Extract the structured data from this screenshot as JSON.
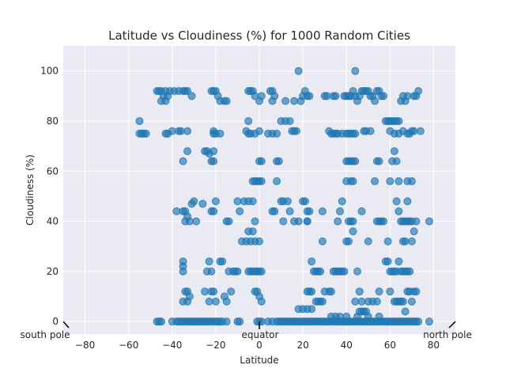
{
  "chart_data": {
    "type": "scatter",
    "title": "Latitude vs Cloudiness (%) for 1000 Random Cities",
    "xlabel": "Latitude",
    "ylabel": "Cloudiness (%)",
    "xlim": [
      -90,
      90
    ],
    "ylim": [
      -5,
      110
    ],
    "xticks": [
      -80,
      -60,
      -40,
      -20,
      0,
      20,
      40,
      60,
      80
    ],
    "yticks": [
      0,
      20,
      40,
      60,
      80,
      100
    ],
    "xtick_labels": [
      "−80",
      "−60",
      "−40",
      "−20",
      "0",
      "20",
      "40",
      "60",
      "80"
    ],
    "ytick_labels": [
      "0",
      "20",
      "40",
      "60",
      "80",
      "100"
    ],
    "grid": true,
    "marker_color": "#1f77b4",
    "annotations": [
      {
        "text": "south pole",
        "x": -90,
        "y": 0
      },
      {
        "text": "equator",
        "x": 0,
        "y": 0
      },
      {
        "text": "north pole",
        "x": 90,
        "y": 0
      }
    ],
    "points": [
      [
        -55,
        80
      ],
      [
        -55,
        75
      ],
      [
        -54,
        75
      ],
      [
        -53,
        75
      ],
      [
        -52,
        75
      ],
      [
        -47,
        92
      ],
      [
        -46,
        92
      ],
      [
        -45,
        92
      ],
      [
        -44,
        90
      ],
      [
        -43,
        92
      ],
      [
        -42,
        90
      ],
      [
        -45,
        88
      ],
      [
        -43,
        88
      ],
      [
        -41,
        92
      ],
      [
        -39,
        92
      ],
      [
        -37,
        92
      ],
      [
        -35,
        92
      ],
      [
        -34,
        92
      ],
      [
        -33,
        92
      ],
      [
        -31,
        90
      ],
      [
        -43,
        75
      ],
      [
        -42,
        75
      ],
      [
        -40,
        76
      ],
      [
        -37,
        76
      ],
      [
        -36,
        76
      ],
      [
        -33,
        76
      ],
      [
        -38,
        44
      ],
      [
        -35,
        44
      ],
      [
        -34,
        44
      ],
      [
        -33,
        42
      ],
      [
        -34,
        40
      ],
      [
        -32,
        40
      ],
      [
        -31,
        47
      ],
      [
        -30,
        48
      ],
      [
        -29,
        40
      ],
      [
        -26,
        47
      ],
      [
        -35,
        24
      ],
      [
        -35,
        22
      ],
      [
        -35,
        20
      ],
      [
        -34,
        12
      ],
      [
        -33,
        12
      ],
      [
        -32,
        10
      ],
      [
        -35,
        8
      ],
      [
        -33,
        8
      ],
      [
        -35,
        64
      ],
      [
        -33,
        68
      ],
      [
        -25,
        68
      ],
      [
        -24,
        68
      ],
      [
        -23,
        67
      ],
      [
        -22,
        64
      ],
      [
        -21,
        64
      ],
      [
        -21,
        68
      ],
      [
        -22,
        92
      ],
      [
        -21,
        92
      ],
      [
        -20,
        92
      ],
      [
        -19,
        90
      ],
      [
        -18,
        88
      ],
      [
        -16,
        88
      ],
      [
        -15,
        88
      ],
      [
        -21,
        76
      ],
      [
        -21,
        75
      ],
      [
        -20,
        75
      ],
      [
        -18,
        75
      ],
      [
        -22,
        44
      ],
      [
        -21,
        44
      ],
      [
        -20,
        48
      ],
      [
        -23,
        24
      ],
      [
        -22,
        20
      ],
      [
        -24,
        20
      ],
      [
        -18,
        24
      ],
      [
        -17,
        24
      ],
      [
        -14,
        20
      ],
      [
        -12,
        20
      ],
      [
        -11,
        20
      ],
      [
        -10,
        20
      ],
      [
        -22,
        12
      ],
      [
        -21,
        12
      ],
      [
        -25,
        12
      ],
      [
        -23,
        8
      ],
      [
        -20,
        8
      ],
      [
        -16,
        10
      ],
      [
        -15,
        8
      ],
      [
        -13,
        12
      ],
      [
        -14,
        40
      ],
      [
        -15,
        40
      ],
      [
        -10,
        48
      ],
      [
        -9,
        44
      ],
      [
        -7,
        48
      ],
      [
        -5,
        48
      ],
      [
        -3,
        48
      ],
      [
        -8,
        32
      ],
      [
        -6,
        32
      ],
      [
        -4,
        32
      ],
      [
        -2,
        32
      ],
      [
        0,
        32
      ],
      [
        -5,
        36
      ],
      [
        -3,
        36
      ],
      [
        -2,
        40
      ],
      [
        -5,
        20
      ],
      [
        -4,
        20
      ],
      [
        -3,
        20
      ],
      [
        -2,
        20
      ],
      [
        -1,
        20
      ],
      [
        0,
        20
      ],
      [
        1,
        20
      ],
      [
        -2,
        12
      ],
      [
        -1,
        12
      ],
      [
        0,
        10
      ],
      [
        1,
        8
      ],
      [
        -3,
        56
      ],
      [
        -2,
        56
      ],
      [
        -1,
        56
      ],
      [
        0,
        56
      ],
      [
        1,
        56
      ],
      [
        0,
        64
      ],
      [
        1,
        64
      ],
      [
        -3,
        92
      ],
      [
        -4,
        92
      ],
      [
        -5,
        92
      ],
      [
        -2,
        90
      ],
      [
        0,
        88
      ],
      [
        1,
        90
      ],
      [
        -5,
        80
      ],
      [
        -6,
        76
      ],
      [
        -5,
        75
      ],
      [
        -4,
        75
      ],
      [
        -2,
        75
      ],
      [
        0,
        76
      ],
      [
        4,
        75
      ],
      [
        6,
        75
      ],
      [
        8,
        75
      ],
      [
        10,
        80
      ],
      [
        12,
        80
      ],
      [
        14,
        80
      ],
      [
        5,
        92
      ],
      [
        6,
        92
      ],
      [
        7,
        90
      ],
      [
        6,
        88
      ],
      [
        12,
        88
      ],
      [
        16,
        88
      ],
      [
        18,
        100
      ],
      [
        20,
        90
      ],
      [
        21,
        92
      ],
      [
        22,
        90
      ],
      [
        23,
        90
      ],
      [
        19,
        88
      ],
      [
        15,
        76
      ],
      [
        16,
        76
      ],
      [
        17,
        76
      ],
      [
        8,
        64
      ],
      [
        9,
        64
      ],
      [
        10,
        48
      ],
      [
        11,
        48
      ],
      [
        13,
        48
      ],
      [
        14,
        44
      ],
      [
        7,
        44
      ],
      [
        6,
        44
      ],
      [
        8,
        56
      ],
      [
        11,
        40
      ],
      [
        16,
        40
      ],
      [
        18,
        40
      ],
      [
        20,
        48
      ],
      [
        21,
        48
      ],
      [
        22,
        44
      ],
      [
        23,
        44
      ],
      [
        22,
        40
      ],
      [
        22,
        40
      ],
      [
        24,
        24
      ],
      [
        25,
        20
      ],
      [
        26,
        20
      ],
      [
        27,
        20
      ],
      [
        28,
        20
      ],
      [
        29,
        32
      ],
      [
        29,
        44
      ],
      [
        22,
        12
      ],
      [
        23,
        12
      ],
      [
        24,
        12
      ],
      [
        26,
        8
      ],
      [
        27,
        8
      ],
      [
        28,
        8
      ],
      [
        29,
        8
      ],
      [
        30,
        12
      ],
      [
        32,
        12
      ],
      [
        33,
        12
      ],
      [
        34,
        20
      ],
      [
        35,
        20
      ],
      [
        36,
        20
      ],
      [
        37,
        20
      ],
      [
        38,
        20
      ],
      [
        39,
        20
      ],
      [
        40,
        32
      ],
      [
        41,
        32
      ],
      [
        43,
        36
      ],
      [
        42,
        40
      ],
      [
        43,
        40
      ],
      [
        41,
        40
      ],
      [
        37,
        44
      ],
      [
        38,
        48
      ],
      [
        36,
        40
      ],
      [
        40,
        56
      ],
      [
        42,
        56
      ],
      [
        43,
        56
      ],
      [
        40,
        64
      ],
      [
        41,
        64
      ],
      [
        42,
        64
      ],
      [
        43,
        64
      ],
      [
        44,
        64
      ],
      [
        40,
        75
      ],
      [
        41,
        75
      ],
      [
        42,
        75
      ],
      [
        43,
        75
      ],
      [
        44,
        75
      ],
      [
        32,
        76
      ],
      [
        33,
        75
      ],
      [
        34,
        75
      ],
      [
        35,
        75
      ],
      [
        36,
        75
      ],
      [
        38,
        75
      ],
      [
        30,
        90
      ],
      [
        31,
        90
      ],
      [
        34,
        90
      ],
      [
        35,
        90
      ],
      [
        39,
        90
      ],
      [
        40,
        90
      ],
      [
        41,
        90
      ],
      [
        42,
        90
      ],
      [
        43,
        92
      ],
      [
        44,
        90
      ],
      [
        45,
        88
      ],
      [
        46,
        90
      ],
      [
        47,
        92
      ],
      [
        48,
        92
      ],
      [
        49,
        92
      ],
      [
        50,
        92
      ],
      [
        51,
        90
      ],
      [
        52,
        90
      ],
      [
        53,
        88
      ],
      [
        54,
        92
      ],
      [
        55,
        92
      ],
      [
        56,
        90
      ],
      [
        57,
        90
      ],
      [
        58,
        80
      ],
      [
        59,
        80
      ],
      [
        60,
        80
      ],
      [
        61,
        80
      ],
      [
        62,
        80
      ],
      [
        63,
        80
      ],
      [
        64,
        80
      ],
      [
        65,
        88
      ],
      [
        66,
        90
      ],
      [
        67,
        88
      ],
      [
        68,
        90
      ],
      [
        69,
        75
      ],
      [
        70,
        76
      ],
      [
        71,
        90
      ],
      [
        72,
        90
      ],
      [
        73,
        92
      ],
      [
        74,
        76
      ],
      [
        60,
        76
      ],
      [
        62,
        75
      ],
      [
        64,
        75
      ],
      [
        66,
        76
      ],
      [
        68,
        75
      ],
      [
        71,
        76
      ],
      [
        62,
        68
      ],
      [
        63,
        64
      ],
      [
        61,
        64
      ],
      [
        60,
        56
      ],
      [
        64,
        56
      ],
      [
        68,
        56
      ],
      [
        70,
        56
      ],
      [
        53,
        56
      ],
      [
        54,
        64
      ],
      [
        55,
        64
      ],
      [
        48,
        76
      ],
      [
        49,
        76
      ],
      [
        51,
        76
      ],
      [
        47,
        44
      ],
      [
        54,
        40
      ],
      [
        55,
        40
      ],
      [
        56,
        40
      ],
      [
        57,
        40
      ],
      [
        64,
        44
      ],
      [
        65,
        40
      ],
      [
        66,
        40
      ],
      [
        67,
        40
      ],
      [
        68,
        40
      ],
      [
        69,
        40
      ],
      [
        70,
        40
      ],
      [
        71,
        36
      ],
      [
        72,
        40
      ],
      [
        63,
        48
      ],
      [
        68,
        48
      ],
      [
        78,
        40
      ],
      [
        58,
        24
      ],
      [
        59,
        24
      ],
      [
        60,
        20
      ],
      [
        61,
        20
      ],
      [
        62,
        20
      ],
      [
        63,
        20
      ],
      [
        64,
        24
      ],
      [
        65,
        20
      ],
      [
        66,
        20
      ],
      [
        67,
        20
      ],
      [
        68,
        20
      ],
      [
        69,
        20
      ],
      [
        59,
        32
      ],
      [
        66,
        32
      ],
      [
        67,
        32
      ],
      [
        70,
        32
      ],
      [
        50,
        32
      ],
      [
        45,
        20
      ],
      [
        44,
        8
      ],
      [
        46,
        12
      ],
      [
        47,
        8
      ],
      [
        48,
        4
      ],
      [
        50,
        8
      ],
      [
        52,
        8
      ],
      [
        54,
        8
      ],
      [
        55,
        12
      ],
      [
        60,
        12
      ],
      [
        62,
        8
      ],
      [
        63,
        8
      ],
      [
        64,
        8
      ],
      [
        65,
        8
      ],
      [
        66,
        8
      ],
      [
        67,
        4
      ],
      [
        68,
        12
      ],
      [
        69,
        12
      ],
      [
        70,
        8
      ],
      [
        71,
        12
      ],
      [
        72,
        12
      ],
      [
        46,
        4
      ],
      [
        47,
        4
      ],
      [
        49,
        4
      ],
      [
        -47,
        0
      ],
      [
        -46,
        0
      ],
      [
        -45,
        0
      ],
      [
        -40,
        0
      ],
      [
        -38,
        0
      ],
      [
        -37,
        0
      ],
      [
        -36,
        0
      ],
      [
        -35,
        0
      ],
      [
        -34,
        0
      ],
      [
        -33,
        0
      ],
      [
        -32,
        0
      ],
      [
        -31,
        0
      ],
      [
        -30,
        0
      ],
      [
        -29,
        0
      ],
      [
        -28,
        0
      ],
      [
        -27,
        0
      ],
      [
        -26,
        0
      ],
      [
        -25,
        0
      ],
      [
        -24,
        0
      ],
      [
        -23,
        0
      ],
      [
        -22,
        0
      ],
      [
        -21,
        0
      ],
      [
        -20,
        0
      ],
      [
        -19,
        0
      ],
      [
        -18,
        0
      ],
      [
        -17,
        0
      ],
      [
        -15,
        0
      ],
      [
        -10,
        0
      ],
      [
        -9,
        0
      ],
      [
        -1,
        0
      ],
      [
        0,
        0
      ],
      [
        1,
        0
      ],
      [
        4,
        0
      ],
      [
        6,
        0
      ],
      [
        8,
        0
      ],
      [
        9,
        0
      ],
      [
        10,
        0
      ],
      [
        11,
        0
      ],
      [
        12,
        0
      ],
      [
        13,
        0
      ],
      [
        14,
        0
      ],
      [
        15,
        0
      ],
      [
        16,
        0
      ],
      [
        17,
        0
      ],
      [
        18,
        0
      ],
      [
        19,
        0
      ],
      [
        20,
        0
      ],
      [
        21,
        0
      ],
      [
        22,
        0
      ],
      [
        23,
        0
      ],
      [
        24,
        0
      ],
      [
        25,
        0
      ],
      [
        26,
        0
      ],
      [
        27,
        0
      ],
      [
        28,
        0
      ],
      [
        29,
        0
      ],
      [
        30,
        0
      ],
      [
        31,
        0
      ],
      [
        32,
        0
      ],
      [
        33,
        0
      ],
      [
        34,
        0
      ],
      [
        35,
        0
      ],
      [
        36,
        0
      ],
      [
        37,
        0
      ],
      [
        38,
        0
      ],
      [
        39,
        0
      ],
      [
        40,
        0
      ],
      [
        41,
        0
      ],
      [
        42,
        0
      ],
      [
        43,
        0
      ],
      [
        44,
        0
      ],
      [
        45,
        0
      ],
      [
        46,
        0
      ],
      [
        47,
        0
      ],
      [
        48,
        0
      ],
      [
        49,
        0
      ],
      [
        50,
        0
      ],
      [
        51,
        0
      ],
      [
        52,
        0
      ],
      [
        53,
        0
      ],
      [
        54,
        0
      ],
      [
        55,
        0
      ],
      [
        56,
        0
      ],
      [
        57,
        0
      ],
      [
        58,
        0
      ],
      [
        59,
        0
      ],
      [
        60,
        0
      ],
      [
        61,
        0
      ],
      [
        62,
        0
      ],
      [
        63,
        0
      ],
      [
        64,
        0
      ],
      [
        65,
        0
      ],
      [
        66,
        0
      ],
      [
        67,
        0
      ],
      [
        68,
        0
      ],
      [
        69,
        0
      ],
      [
        70,
        0
      ],
      [
        71,
        0
      ],
      [
        72,
        0
      ],
      [
        73,
        0
      ],
      [
        78,
        0
      ],
      [
        18,
        5
      ],
      [
        20,
        5
      ],
      [
        22,
        5
      ],
      [
        24,
        5
      ],
      [
        33,
        2
      ],
      [
        35,
        2
      ],
      [
        37,
        2
      ],
      [
        40,
        2
      ],
      [
        45,
        2
      ],
      [
        50,
        2
      ],
      [
        55,
        2
      ],
      [
        44,
        100
      ]
    ]
  }
}
